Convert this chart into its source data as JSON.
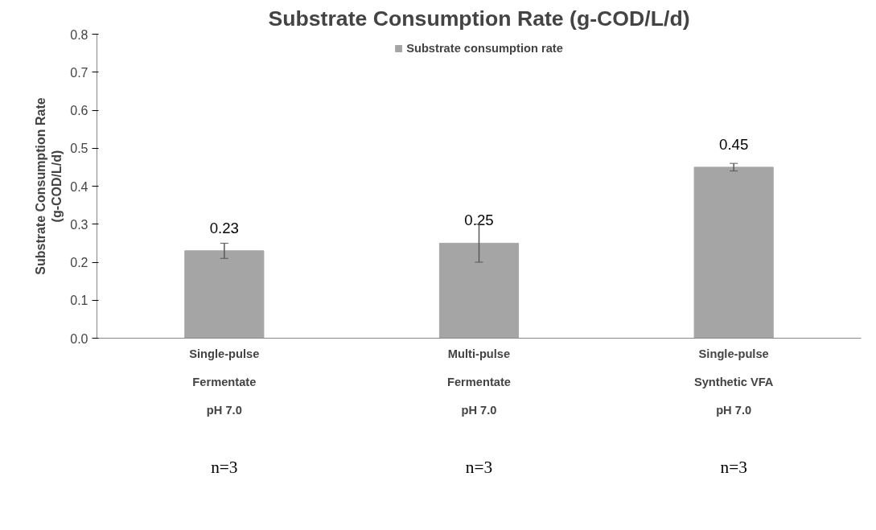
{
  "chart_data": {
    "type": "bar",
    "title": "Substrate Consumption Rate (g-COD/L/d)",
    "ylabel": "Substrate Consumption Rate\n(g-COD/L/d)",
    "categories": [
      "Single-pulse\nFermentate\npH 7.0",
      "Multi-pulse\nFermentate\npH 7.0",
      "Single-pulse\nSynthetic VFA\npH 7.0"
    ],
    "series": [
      {
        "name": "Substrate consumption rate",
        "color": "#a5a5a5",
        "values": [
          0.23,
          0.25,
          0.45
        ],
        "errors": [
          0.02,
          0.05,
          0.01
        ]
      }
    ],
    "data_labels": true,
    "ylim": [
      0,
      0.8
    ],
    "yticks": [
      {
        "value": 0,
        "label": "0.0"
      },
      {
        "value": 0.1,
        "label": "0.1"
      },
      {
        "value": 0.2,
        "label": "0.2"
      },
      {
        "value": 0.3,
        "label": "0.3"
      },
      {
        "value": 0.4,
        "label": "0.4"
      },
      {
        "value": 0.5,
        "label": "0.5"
      },
      {
        "value": 0.6,
        "label": "0.6"
      },
      {
        "value": 0.7,
        "label": "0.7"
      },
      {
        "value": 0.8,
        "label": "0.8"
      }
    ],
    "legend": "top",
    "grid": false,
    "annotations": [
      "n=3",
      "n=3",
      "n=3"
    ]
  }
}
